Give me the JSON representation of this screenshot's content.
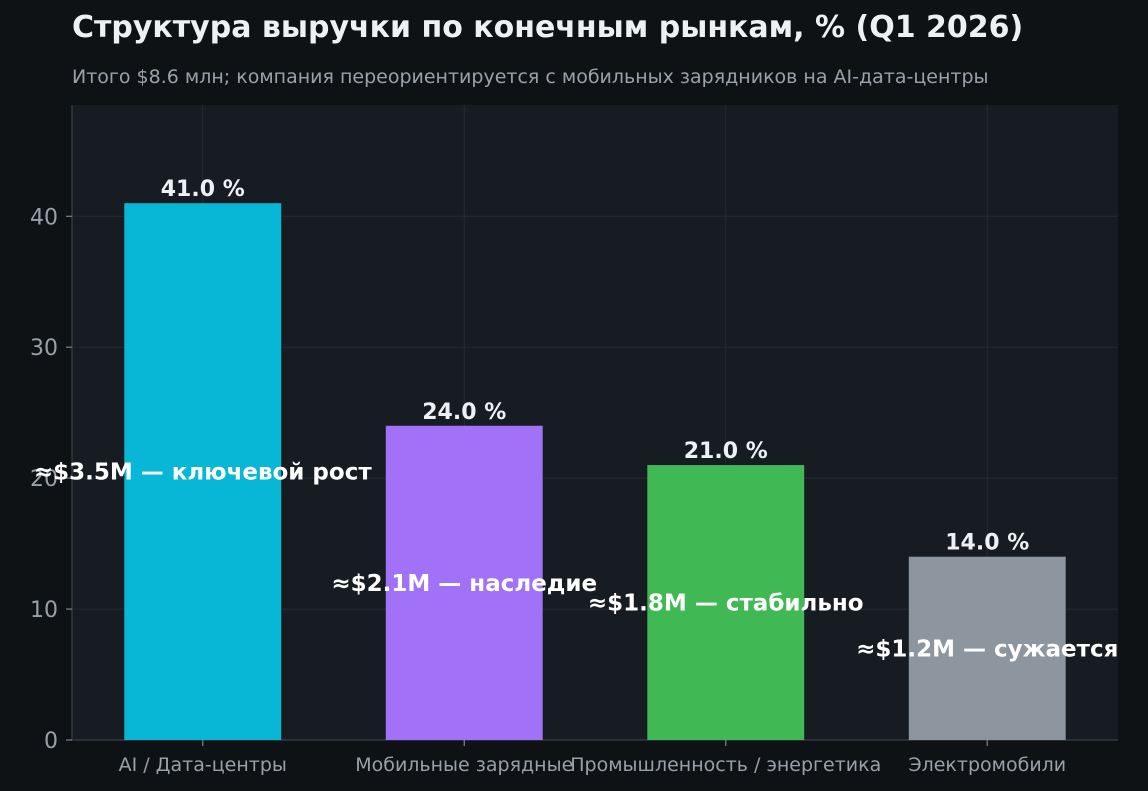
{
  "chart_data": {
    "type": "bar",
    "title": "Структура выручки по конечным рынкам, % (Q1 2026)",
    "subtitle": "Итого $8.6 млн; компания переориентируется с мобильных зарядников на AI-дата-центры",
    "xlabel": "",
    "ylabel": "",
    "categories": [
      "AI / Дата-центры",
      "Мобильные зарядные",
      "Промышленность / энергетика",
      "Электромобили"
    ],
    "values": [
      41.0,
      24.0,
      21.0,
      14.0
    ],
    "value_labels": [
      "41.0 %",
      "24.0 %",
      "21.0 %",
      "14.0 %"
    ],
    "annotations": [
      {
        "text": "≈$3.5M — ключевой рост",
        "category_index": 0,
        "y": 20.5
      },
      {
        "text": "≈$2.1M — наследие",
        "category_index": 1,
        "y": 12.0
      },
      {
        "text": "≈$1.8M — стабильно",
        "category_index": 2,
        "y": 10.5
      },
      {
        "text": "≈$1.2M — сужается",
        "category_index": 3,
        "y": 7.0
      }
    ],
    "colors": [
      "#08b6d5",
      "#a172f8",
      "#40b853",
      "#8d959f"
    ],
    "ylim": [
      0,
      48.5
    ],
    "yticks": [
      0,
      10,
      20,
      30,
      40
    ],
    "grid": true,
    "legend": "none"
  }
}
